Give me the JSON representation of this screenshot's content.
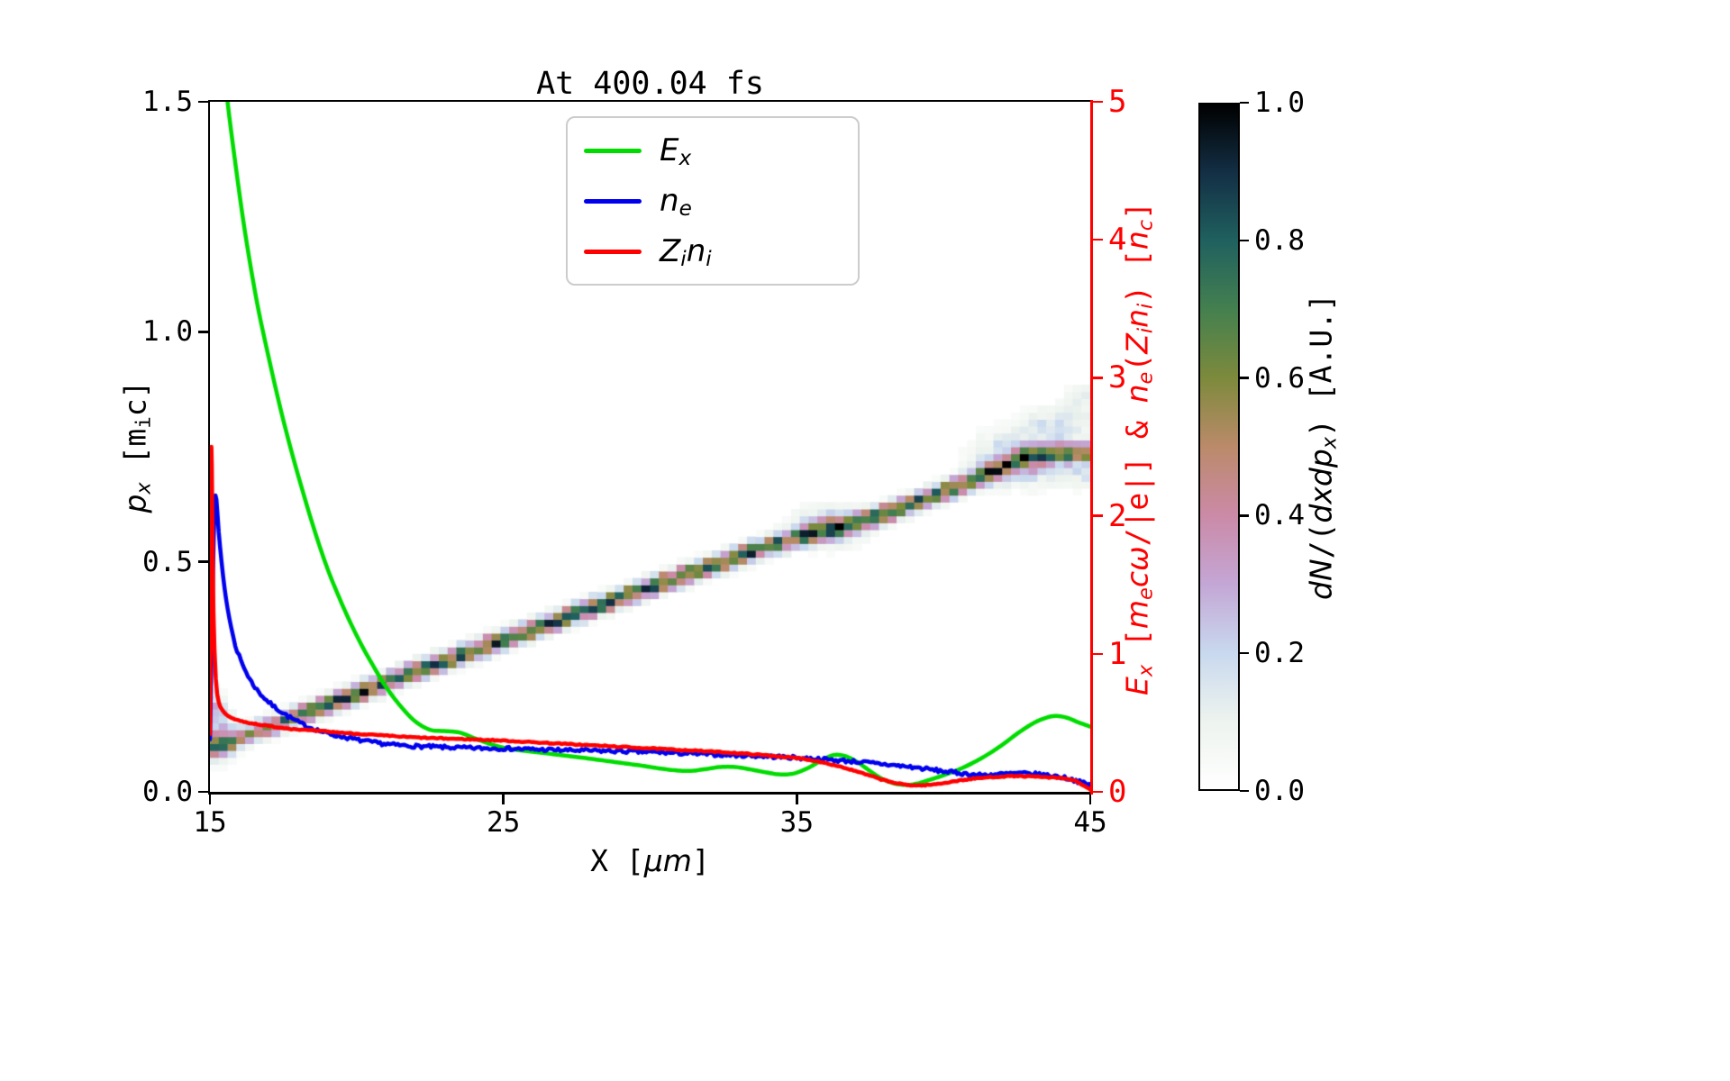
{
  "title": "At 400.04 fs",
  "labels": {
    "xlabel": [
      {
        "t": "X ["
      },
      {
        "t": "μm",
        "it": true
      },
      {
        "t": "]"
      }
    ],
    "ylabel_left": [
      {
        "t": "p",
        "it": true
      },
      {
        "t": "x",
        "it": true,
        "sub": true
      },
      {
        "t": " [m"
      },
      {
        "t": "i",
        "sub": true
      },
      {
        "t": "c]"
      }
    ],
    "ylabel_right": [
      {
        "t": "E",
        "it": true
      },
      {
        "t": "x",
        "it": true,
        "sub": true
      },
      {
        "t": " ["
      },
      {
        "t": "m",
        "it": true
      },
      {
        "t": "e",
        "it": true,
        "sub": true
      },
      {
        "t": "c",
        "it": true
      },
      {
        "t": "ω",
        "it": true
      },
      {
        "t": "/|e|] & "
      },
      {
        "t": "n",
        "it": true
      },
      {
        "t": "e",
        "it": true,
        "sub": true
      },
      {
        "t": "("
      },
      {
        "t": "Z",
        "it": true
      },
      {
        "t": "i",
        "it": true,
        "sub": true
      },
      {
        "t": "n",
        "it": true
      },
      {
        "t": "i",
        "it": true,
        "sub": true
      },
      {
        "t": ") ["
      },
      {
        "t": "n",
        "it": true
      },
      {
        "t": "c",
        "it": true,
        "sub": true
      },
      {
        "t": "]"
      }
    ],
    "colorbar": [
      {
        "t": "d",
        "it": true
      },
      {
        "t": "N",
        "it": true
      },
      {
        "t": "/("
      },
      {
        "t": "dxdp",
        "it": true
      },
      {
        "t": "x",
        "it": true,
        "sub": true
      },
      {
        "t": ") [A.U.]"
      }
    ]
  },
  "legend": {
    "items": [
      {
        "series": 0,
        "label_rich": [
          {
            "t": "E",
            "it": true
          },
          {
            "t": "x",
            "it": true,
            "sub": true
          }
        ]
      },
      {
        "series": 1,
        "label_rich": [
          {
            "t": "n",
            "it": true
          },
          {
            "t": "e",
            "it": true,
            "sub": true
          }
        ]
      },
      {
        "series": 2,
        "label_rich": [
          {
            "t": "Z",
            "it": true
          },
          {
            "t": "i",
            "it": true,
            "sub": true
          },
          {
            "t": "n",
            "it": true
          },
          {
            "t": "i",
            "it": true,
            "sub": true
          }
        ]
      }
    ]
  },
  "chart_data": {
    "type": "heatmap+line",
    "title": "At 400.04 fs",
    "legend_loc": "upper center",
    "x_axis": {
      "label": "X [μm]",
      "range": [
        15,
        45
      ],
      "ticks": [
        {
          "v": 15,
          "t": "15"
        },
        {
          "v": 25,
          "t": "25"
        },
        {
          "v": 35,
          "t": "35"
        },
        {
          "v": 45,
          "t": "45"
        }
      ]
    },
    "y_left": {
      "label": "p_x [m_i c]",
      "range": [
        0,
        1.5
      ],
      "ticks": [
        {
          "v": 0.0,
          "t": "0.0"
        },
        {
          "v": 0.5,
          "t": "0.5"
        },
        {
          "v": 1.0,
          "t": "1.0"
        },
        {
          "v": 1.5,
          "t": "1.5"
        }
      ]
    },
    "y_right": {
      "label": "E_x [m_e c ω/|e|] & n_e(Z_i n_i) [n_c]",
      "range": [
        0,
        5
      ],
      "color": "#ff0000",
      "ticks": [
        {
          "v": 0,
          "t": "0"
        },
        {
          "v": 1,
          "t": "1"
        },
        {
          "v": 2,
          "t": "2"
        },
        {
          "v": 3,
          "t": "3"
        },
        {
          "v": 4,
          "t": "4"
        },
        {
          "v": 5,
          "t": "5"
        }
      ]
    },
    "colorbar": {
      "label": "dN/(dxdp_x) [A.U.]",
      "range": [
        0,
        1
      ],
      "ticks": [
        {
          "v": 0.0,
          "t": "0.0"
        },
        {
          "v": 0.2,
          "t": "0.2"
        },
        {
          "v": 0.4,
          "t": "0.4"
        },
        {
          "v": 0.6,
          "t": "0.6"
        },
        {
          "v": 0.8,
          "t": "0.8"
        },
        {
          "v": 1.0,
          "t": "1.0"
        }
      ],
      "stops": [
        [
          0.0,
          "#ffffff"
        ],
        [
          0.1,
          "#edf3ee"
        ],
        [
          0.2,
          "#c8d8ee"
        ],
        [
          0.3,
          "#c4a6d5"
        ],
        [
          0.4,
          "#cb8aa7"
        ],
        [
          0.5,
          "#bb8a6a"
        ],
        [
          0.6,
          "#7d8a3c"
        ],
        [
          0.7,
          "#45804f"
        ],
        [
          0.8,
          "#20615f"
        ],
        [
          0.9,
          "#132f45"
        ],
        [
          1.0,
          "#000000"
        ]
      ]
    },
    "series": [
      {
        "name": "E_x",
        "axis": "right",
        "color": "#00dc00",
        "jitter": 0,
        "points": [
          [
            15.35,
            5.5
          ],
          [
            15.6,
            5.0
          ],
          [
            15.9,
            4.5
          ],
          [
            16.2,
            4.05
          ],
          [
            16.6,
            3.55
          ],
          [
            17.0,
            3.15
          ],
          [
            17.4,
            2.78
          ],
          [
            17.8,
            2.45
          ],
          [
            18.2,
            2.15
          ],
          [
            18.6,
            1.87
          ],
          [
            19.0,
            1.62
          ],
          [
            19.4,
            1.41
          ],
          [
            19.8,
            1.22
          ],
          [
            20.2,
            1.05
          ],
          [
            20.6,
            0.9
          ],
          [
            21.0,
            0.76
          ],
          [
            21.5,
            0.62
          ],
          [
            22.0,
            0.51
          ],
          [
            22.5,
            0.45
          ],
          [
            23.0,
            0.44
          ],
          [
            23.5,
            0.43
          ],
          [
            24.0,
            0.39
          ],
          [
            24.5,
            0.35
          ],
          [
            25.0,
            0.32
          ],
          [
            25.6,
            0.3
          ],
          [
            26.2,
            0.285
          ],
          [
            26.9,
            0.268
          ],
          [
            27.6,
            0.25
          ],
          [
            28.3,
            0.23
          ],
          [
            29.0,
            0.21
          ],
          [
            29.7,
            0.19
          ],
          [
            30.3,
            0.17
          ],
          [
            30.9,
            0.155
          ],
          [
            31.4,
            0.152
          ],
          [
            31.9,
            0.165
          ],
          [
            32.4,
            0.18
          ],
          [
            32.9,
            0.18
          ],
          [
            33.4,
            0.163
          ],
          [
            33.9,
            0.143
          ],
          [
            34.4,
            0.127
          ],
          [
            34.9,
            0.133
          ],
          [
            35.4,
            0.175
          ],
          [
            35.9,
            0.235
          ],
          [
            36.3,
            0.268
          ],
          [
            36.7,
            0.255
          ],
          [
            37.1,
            0.21
          ],
          [
            37.5,
            0.15
          ],
          [
            37.9,
            0.095
          ],
          [
            38.3,
            0.062
          ],
          [
            38.7,
            0.05
          ],
          [
            39.1,
            0.06
          ],
          [
            39.5,
            0.085
          ],
          [
            40.0,
            0.12
          ],
          [
            40.5,
            0.16
          ],
          [
            41.0,
            0.21
          ],
          [
            41.5,
            0.27
          ],
          [
            42.0,
            0.34
          ],
          [
            42.5,
            0.42
          ],
          [
            43.0,
            0.49
          ],
          [
            43.4,
            0.53
          ],
          [
            43.8,
            0.55
          ],
          [
            44.2,
            0.537
          ],
          [
            44.6,
            0.503
          ],
          [
            45.0,
            0.472
          ]
        ]
      },
      {
        "name": "n_e",
        "axis": "right",
        "color": "#0000ee",
        "jitter": 0.013,
        "points": [
          [
            15.0,
            0.38
          ],
          [
            15.05,
            0.95
          ],
          [
            15.1,
            1.55
          ],
          [
            15.16,
            2.08
          ],
          [
            15.22,
            2.12
          ],
          [
            15.3,
            1.88
          ],
          [
            15.45,
            1.56
          ],
          [
            15.6,
            1.33
          ],
          [
            15.8,
            1.12
          ],
          [
            16.0,
            0.98
          ],
          [
            16.3,
            0.84
          ],
          [
            16.6,
            0.74
          ],
          [
            17.0,
            0.65
          ],
          [
            17.4,
            0.585
          ],
          [
            17.8,
            0.53
          ],
          [
            18.2,
            0.485
          ],
          [
            18.6,
            0.452
          ],
          [
            19.0,
            0.425
          ],
          [
            19.5,
            0.4
          ],
          [
            20.0,
            0.378
          ],
          [
            20.6,
            0.357
          ],
          [
            21.2,
            0.342
          ],
          [
            21.9,
            0.332
          ],
          [
            22.6,
            0.326
          ],
          [
            23.4,
            0.32
          ],
          [
            24.2,
            0.316
          ],
          [
            25.0,
            0.314
          ],
          [
            26.0,
            0.308
          ],
          [
            27.0,
            0.302
          ],
          [
            28.0,
            0.298
          ],
          [
            29.0,
            0.294
          ],
          [
            30.0,
            0.288
          ],
          [
            31.0,
            0.28
          ],
          [
            32.0,
            0.272
          ],
          [
            33.0,
            0.265
          ],
          [
            34.0,
            0.257
          ],
          [
            35.0,
            0.247
          ],
          [
            36.0,
            0.234
          ],
          [
            37.0,
            0.219
          ],
          [
            38.0,
            0.199
          ],
          [
            39.0,
            0.177
          ],
          [
            40.0,
            0.149
          ],
          [
            40.7,
            0.132
          ],
          [
            41.3,
            0.122
          ],
          [
            42.0,
            0.129
          ],
          [
            42.6,
            0.134
          ],
          [
            43.2,
            0.127
          ],
          [
            43.8,
            0.114
          ],
          [
            44.3,
            0.094
          ],
          [
            44.7,
            0.068
          ],
          [
            45.0,
            0.048
          ]
        ]
      },
      {
        "name": "Z_i n_i",
        "axis": "right",
        "color": "#ff0000",
        "jitter": 0.004,
        "points": [
          [
            15.0,
            0.42
          ],
          [
            15.03,
            1.7
          ],
          [
            15.05,
            2.5
          ],
          [
            15.08,
            2.05
          ],
          [
            15.12,
            1.3
          ],
          [
            15.2,
            0.82
          ],
          [
            15.3,
            0.65
          ],
          [
            15.45,
            0.585
          ],
          [
            15.6,
            0.553
          ],
          [
            15.8,
            0.53
          ],
          [
            16.1,
            0.51
          ],
          [
            16.5,
            0.494
          ],
          [
            17.0,
            0.477
          ],
          [
            17.6,
            0.461
          ],
          [
            18.2,
            0.449
          ],
          [
            18.9,
            0.438
          ],
          [
            19.6,
            0.427
          ],
          [
            20.4,
            0.415
          ],
          [
            21.2,
            0.404
          ],
          [
            22.0,
            0.394
          ],
          [
            22.9,
            0.387
          ],
          [
            23.8,
            0.381
          ],
          [
            24.7,
            0.374
          ],
          [
            25.6,
            0.364
          ],
          [
            26.5,
            0.354
          ],
          [
            27.4,
            0.344
          ],
          [
            28.3,
            0.334
          ],
          [
            29.2,
            0.324
          ],
          [
            30.1,
            0.314
          ],
          [
            31.0,
            0.304
          ],
          [
            32.0,
            0.293
          ],
          [
            33.0,
            0.28
          ],
          [
            34.0,
            0.264
          ],
          [
            35.0,
            0.244
          ],
          [
            35.6,
            0.226
          ],
          [
            36.2,
            0.198
          ],
          [
            36.8,
            0.163
          ],
          [
            37.4,
            0.123
          ],
          [
            38.0,
            0.083
          ],
          [
            38.5,
            0.058
          ],
          [
            39.0,
            0.047
          ],
          [
            39.5,
            0.05
          ],
          [
            40.0,
            0.064
          ],
          [
            40.6,
            0.084
          ],
          [
            41.2,
            0.099
          ],
          [
            41.8,
            0.109
          ],
          [
            42.4,
            0.114
          ],
          [
            43.0,
            0.111
          ],
          [
            43.6,
            0.104
          ],
          [
            44.1,
            0.097
          ],
          [
            44.5,
            0.078
          ],
          [
            44.8,
            0.042
          ],
          [
            45.0,
            0.014
          ]
        ]
      }
    ],
    "heatmap": {
      "axis": "left",
      "description": "ion phase-space density band rising diagonally",
      "cell": [
        0.3,
        0.015
      ],
      "sigma_p": 0.014,
      "ridge": [
        [
          15.0,
          0.095
        ],
        [
          16,
          0.118
        ],
        [
          17,
          0.142
        ],
        [
          18,
          0.166
        ],
        [
          19,
          0.19
        ],
        [
          20,
          0.214
        ],
        [
          21,
          0.238
        ],
        [
          22,
          0.262
        ],
        [
          23,
          0.285
        ],
        [
          24,
          0.308
        ],
        [
          25,
          0.331
        ],
        [
          26,
          0.354
        ],
        [
          27,
          0.377
        ],
        [
          28,
          0.4
        ],
        [
          29,
          0.423
        ],
        [
          30,
          0.446
        ],
        [
          31,
          0.468
        ],
        [
          32,
          0.49
        ],
        [
          33,
          0.512
        ],
        [
          34,
          0.534
        ],
        [
          35,
          0.553
        ],
        [
          36,
          0.569
        ],
        [
          37,
          0.586
        ],
        [
          38,
          0.606
        ],
        [
          39,
          0.628
        ],
        [
          40,
          0.652
        ],
        [
          41,
          0.678
        ],
        [
          42,
          0.706
        ],
        [
          42.8,
          0.726
        ],
        [
          43.5,
          0.735
        ],
        [
          44.2,
          0.738
        ],
        [
          45,
          0.74
        ]
      ],
      "intensity": [
        [
          15,
          0.7
        ],
        [
          16,
          0.72
        ],
        [
          17,
          0.78
        ],
        [
          18,
          0.88
        ],
        [
          19.5,
          1.0
        ],
        [
          34,
          1.0
        ],
        [
          35.3,
          0.92
        ],
        [
          36.5,
          0.85
        ],
        [
          37.5,
          0.95
        ],
        [
          38.5,
          1.0
        ],
        [
          41.5,
          1.0
        ],
        [
          42.5,
          0.92
        ],
        [
          43.5,
          0.88
        ],
        [
          45,
          0.9
        ]
      ],
      "blobs": [
        {
          "x": 36.1,
          "p": 0.578,
          "rx": 1.1,
          "rp": 0.04,
          "a": 0.33
        },
        {
          "x": 42.7,
          "p": 0.725,
          "rx": 1.5,
          "rp": 0.055,
          "a": 0.38
        },
        {
          "x": 43.9,
          "p": 0.802,
          "rx": 1.1,
          "rp": 0.034,
          "a": 0.22
        },
        {
          "x": 45.0,
          "p": 0.856,
          "rx": 0.8,
          "rp": 0.03,
          "a": 0.18
        },
        {
          "x": 44.9,
          "p": 0.69,
          "rx": 0.7,
          "rp": 0.028,
          "a": 0.2
        },
        {
          "x": 15.35,
          "p": 0.125,
          "rx": 0.45,
          "rp": 0.05,
          "a": 0.5
        },
        {
          "x": 15.15,
          "p": 0.19,
          "rx": 0.3,
          "rp": 0.035,
          "a": 0.28
        }
      ]
    }
  }
}
